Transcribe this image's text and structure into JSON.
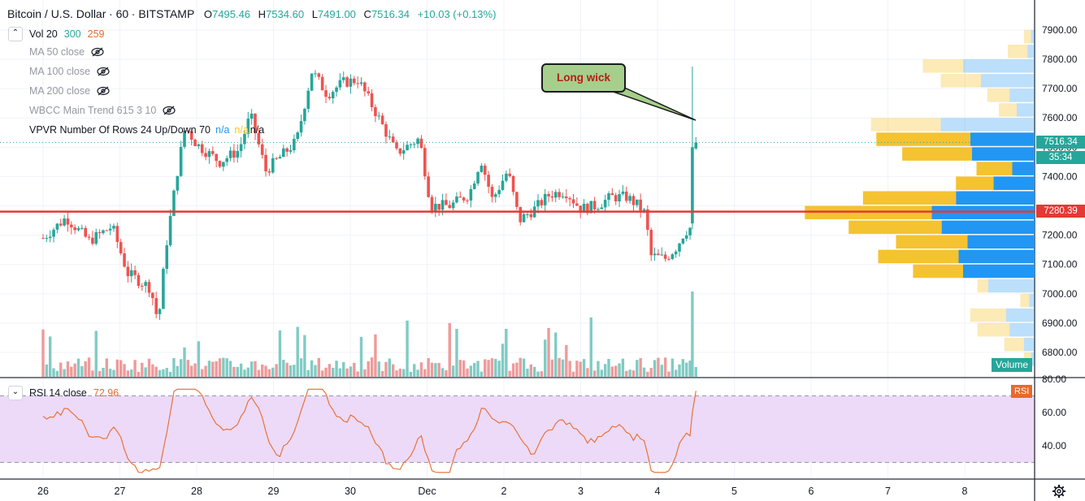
{
  "header": {
    "symbol": "Bitcoin / U.S. Dollar",
    "interval": "60",
    "exchange": "BITSTAMP",
    "o_label": "O",
    "o_value": "7495.46",
    "h_label": "H",
    "h_value": "7534.60",
    "l_label": "L",
    "l_value": "7491.00",
    "c_label": "C",
    "c_value": "7516.34",
    "change": "+10.03 (+0.13%)"
  },
  "indicators": {
    "vol_label": "Vol 20",
    "vol_v1": "300",
    "vol_v2": "259",
    "ma50": "MA 50 close",
    "ma100": "MA 100 close",
    "ma200": "MA 200 close",
    "wbcc": "WBCC Main Trend 615 3 10",
    "vpvr_label": "VPVR Number Of Rows 24 Up/Down 70",
    "vpvr_na1": "n/a",
    "vpvr_na2": "n/a",
    "vpvr_na3": "n/a",
    "rsi_label": "RSI 14 close",
    "rsi_value": "72.96"
  },
  "annotation": {
    "text": "Long wick"
  },
  "price_tags": {
    "last": "7516.34",
    "countdown": "35:34",
    "line": "7280.39"
  },
  "badges": {
    "volume": "Volume",
    "rsi": "RSI"
  },
  "colors": {
    "up": "#26a69a",
    "down": "#ef5350",
    "vol_up": "#80cbc4",
    "vol_down": "#ef9a9a",
    "horizontal_line": "#e53935",
    "vp_up": "#2196f3",
    "vp_down": "#f5c231",
    "rsi_line": "#e86a2c",
    "rsi_band": "#ecdaf8"
  },
  "chart_data": {
    "type": "candlestick",
    "price_axis": {
      "ticks": [
        6800,
        6900,
        7000,
        7100,
        7200,
        7300,
        7400,
        7500,
        7600,
        7700,
        7800,
        7900
      ],
      "tick_labels": [
        "6800.00",
        "6900.00",
        "7000.00",
        "7100.00",
        "7200.00",
        "",
        "7400.00",
        "7500.00",
        "7600.00",
        "7700.00",
        "7800.00",
        "7900.00"
      ]
    },
    "time_axis": {
      "labels": [
        "26",
        "27",
        "28",
        "29",
        "30",
        "Dec",
        "2",
        "3",
        "4",
        "5",
        "6",
        "7",
        "8"
      ]
    },
    "rsi_axis": {
      "ticks": [
        40,
        60,
        80
      ],
      "tick_labels": [
        "40.00",
        "60.00",
        "80.00"
      ],
      "upper": 70,
      "lower": 30
    },
    "horizontal_line": 7280.39,
    "last_price": 7516.34,
    "day_anchors": [
      [
        0,
        7190
      ],
      [
        0.3,
        7260
      ],
      [
        0.6,
        7180
      ],
      [
        0.9,
        7230
      ],
      [
        1.1,
        7070
      ],
      [
        1.4,
        7020
      ],
      [
        1.5,
        6900
      ],
      [
        1.6,
        7160
      ],
      [
        1.75,
        7420
      ],
      [
        1.85,
        7570
      ],
      [
        2.0,
        7510
      ],
      [
        2.3,
        7450
      ],
      [
        2.55,
        7490
      ],
      [
        2.7,
        7610
      ],
      [
        2.9,
        7420
      ],
      [
        3.1,
        7470
      ],
      [
        3.3,
        7520
      ],
      [
        3.5,
        7760
      ],
      [
        3.7,
        7680
      ],
      [
        3.9,
        7720
      ],
      [
        4.1,
        7730
      ],
      [
        4.35,
        7610
      ],
      [
        4.6,
        7480
      ],
      [
        4.9,
        7530
      ],
      [
        5.05,
        7300
      ],
      [
        5.3,
        7300
      ],
      [
        5.55,
        7340
      ],
      [
        5.7,
        7460
      ],
      [
        5.85,
        7320
      ],
      [
        6.05,
        7420
      ],
      [
        6.2,
        7250
      ],
      [
        6.4,
        7290
      ],
      [
        6.6,
        7340
      ],
      [
        6.8,
        7350
      ],
      [
        7.0,
        7290
      ],
      [
        7.2,
        7300
      ],
      [
        7.4,
        7330
      ],
      [
        7.6,
        7330
      ],
      [
        7.75,
        7300
      ],
      [
        7.85,
        7270
      ],
      [
        7.9,
        7130
      ],
      [
        8.1,
        7120
      ],
      [
        8.25,
        7160
      ],
      [
        8.35,
        7210
      ],
      [
        8.45,
        7230
      ],
      [
        8.5,
        7520
      ]
    ],
    "volume_profile": [
      {
        "price": 7875,
        "up": 8,
        "down": 4
      },
      {
        "price": 7825,
        "up": 22,
        "down": 8
      },
      {
        "price": 7775,
        "up": 45,
        "down": 80
      },
      {
        "price": 7725,
        "up": 45,
        "down": 60
      },
      {
        "price": 7675,
        "up": 25,
        "down": 28
      },
      {
        "price": 7625,
        "up": 20,
        "down": 20
      },
      {
        "price": 7575,
        "up": 78,
        "down": 105
      },
      {
        "price": 7525,
        "up": 105,
        "down": 72
      },
      {
        "price": 7475,
        "up": 78,
        "down": 70
      },
      {
        "price": 7425,
        "up": 40,
        "down": 25
      },
      {
        "price": 7375,
        "up": 42,
        "down": 46
      },
      {
        "price": 7325,
        "up": 104,
        "down": 88
      },
      {
        "price": 7275,
        "up": 142,
        "down": 115
      },
      {
        "price": 7225,
        "up": 104,
        "down": 104
      },
      {
        "price": 7175,
        "up": 80,
        "down": 75
      },
      {
        "price": 7125,
        "up": 90,
        "down": 85
      },
      {
        "price": 7075,
        "up": 56,
        "down": 80
      },
      {
        "price": 7025,
        "up": 12,
        "down": 52
      },
      {
        "price": 6975,
        "up": 10,
        "down": 6
      },
      {
        "price": 6925,
        "up": 40,
        "down": 32
      },
      {
        "price": 6875,
        "up": 36,
        "down": 28
      },
      {
        "price": 6825,
        "up": 22,
        "down": 12
      },
      {
        "price": 6775,
        "up": 8,
        "down": 4
      }
    ]
  }
}
